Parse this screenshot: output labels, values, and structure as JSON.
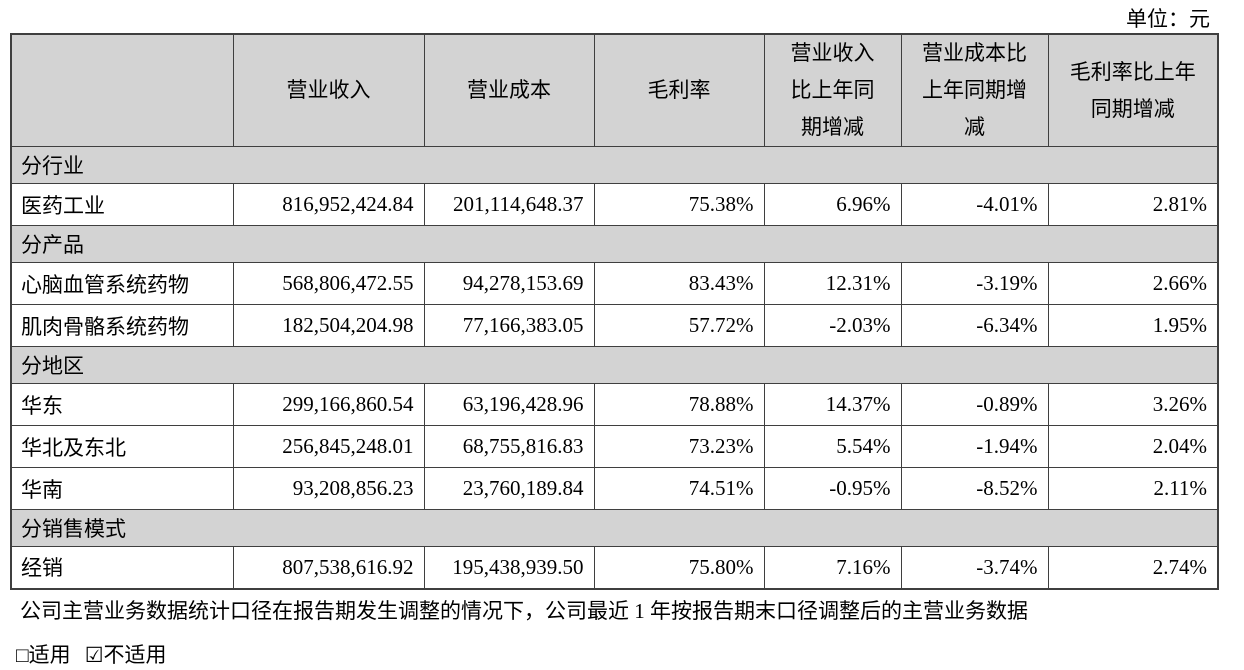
{
  "unit_label": "单位：元",
  "table": {
    "columns": [
      {
        "label": ""
      },
      {
        "label": "营业收入"
      },
      {
        "label": "营业成本"
      },
      {
        "label": "毛利率"
      },
      {
        "label": "营业收入\n比上年同\n期增减"
      },
      {
        "label": "营业成本比\n上年同期增\n减"
      },
      {
        "label": "毛利率比上年\n同期增减"
      }
    ],
    "sections": [
      {
        "title": "分行业",
        "rows": [
          {
            "name": "医药工业",
            "values": [
              "816,952,424.84",
              "201,114,648.37",
              "75.38%",
              "6.96%",
              "-4.01%",
              "2.81%"
            ]
          }
        ]
      },
      {
        "title": "分产品",
        "rows": [
          {
            "name": "心脑血管系统药物",
            "values": [
              "568,806,472.55",
              "94,278,153.69",
              "83.43%",
              "12.31%",
              "-3.19%",
              "2.66%"
            ]
          },
          {
            "name": "肌肉骨骼系统药物",
            "values": [
              "182,504,204.98",
              "77,166,383.05",
              "57.72%",
              "-2.03%",
              "-6.34%",
              "1.95%"
            ]
          }
        ]
      },
      {
        "title": "分地区",
        "rows": [
          {
            "name": "华东",
            "values": [
              "299,166,860.54",
              "63,196,428.96",
              "78.88%",
              "14.37%",
              "-0.89%",
              "3.26%"
            ]
          },
          {
            "name": "华北及东北",
            "values": [
              "256,845,248.01",
              "68,755,816.83",
              "73.23%",
              "5.54%",
              "-1.94%",
              "2.04%"
            ]
          },
          {
            "name": "华南",
            "values": [
              "93,208,856.23",
              "23,760,189.84",
              "74.51%",
              "-0.95%",
              "-8.52%",
              "2.11%"
            ]
          }
        ]
      },
      {
        "title": "分销售模式",
        "rows": [
          {
            "name": "经销",
            "values": [
              "807,538,616.92",
              "195,438,939.50",
              "75.80%",
              "7.16%",
              "-3.74%",
              "2.74%"
            ]
          }
        ]
      }
    ]
  },
  "footnote": "公司主营业务数据统计口径在报告期发生调整的情况下，公司最近 1 年按报告期末口径调整后的主营业务数据",
  "applicability": {
    "applicable_label": "□适用",
    "not_applicable_label": "☑不适用"
  },
  "colors": {
    "section_bg": "#d3d3d3",
    "border": "#3f3f3f",
    "text": "#000000",
    "page_bg": "#ffffff"
  }
}
